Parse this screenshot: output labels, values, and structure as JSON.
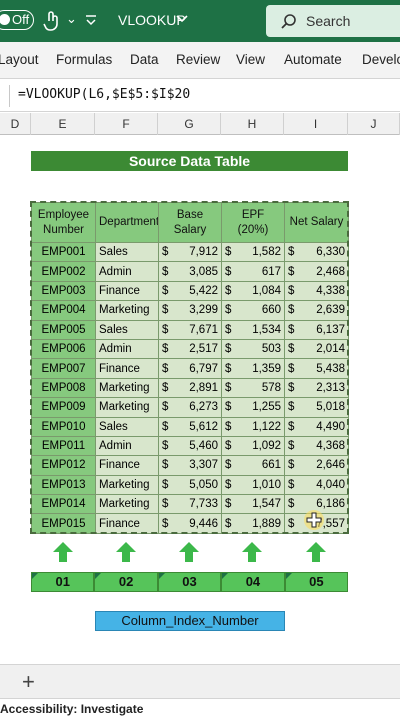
{
  "titlebar": {
    "autosave_label": "Off",
    "doc_title": "VLOOKUP",
    "search_placeholder": "Search"
  },
  "ribbon": {
    "tabs": [
      "Layout",
      "Formulas",
      "Data",
      "Review",
      "View",
      "Automate",
      "Develo"
    ]
  },
  "formula_bar": {
    "formula": "=VLOOKUP(L6,$E$5:$I$20"
  },
  "column_headers": [
    "D",
    "E",
    "F",
    "G",
    "H",
    "I",
    "J"
  ],
  "sheet": {
    "title": "Source Data Table",
    "table": {
      "headers": [
        "Employee Number",
        "Department",
        "Base Salary",
        "EPF (20%)",
        "Net Salary"
      ],
      "currency_symbol": "$",
      "rows": [
        [
          "EMP001",
          "Sales",
          "7,912",
          "1,582",
          "6,330"
        ],
        [
          "EMP002",
          "Admin",
          "3,085",
          "617",
          "2,468"
        ],
        [
          "EMP003",
          "Finance",
          "5,422",
          "1,084",
          "4,338"
        ],
        [
          "EMP004",
          "Marketing",
          "3,299",
          "660",
          "2,639"
        ],
        [
          "EMP005",
          "Sales",
          "7,671",
          "1,534",
          "6,137"
        ],
        [
          "EMP006",
          "Admin",
          "2,517",
          "503",
          "2,014"
        ],
        [
          "EMP007",
          "Finance",
          "6,797",
          "1,359",
          "5,438"
        ],
        [
          "EMP008",
          "Marketing",
          "2,891",
          "578",
          "2,313"
        ],
        [
          "EMP009",
          "Marketing",
          "6,273",
          "1,255",
          "5,018"
        ],
        [
          "EMP010",
          "Sales",
          "5,612",
          "1,122",
          "4,490"
        ],
        [
          "EMP011",
          "Admin",
          "5,460",
          "1,092",
          "4,368"
        ],
        [
          "EMP012",
          "Finance",
          "3,307",
          "661",
          "2,646"
        ],
        [
          "EMP013",
          "Marketing",
          "5,050",
          "1,010",
          "4,040"
        ],
        [
          "EMP014",
          "Marketing",
          "7,733",
          "1,547",
          "6,186"
        ],
        [
          "EMP015",
          "Finance",
          "9,446",
          "1,889",
          "7,557"
        ]
      ]
    },
    "column_indexes": [
      "01",
      "02",
      "03",
      "04",
      "05"
    ],
    "index_label": "Column_Index_Number"
  },
  "status_bar": {
    "accessibility": "Accessibility: Investigate"
  },
  "colors": {
    "excel_green": "#1e7145",
    "title_band": "#3c8a34",
    "header_fill": "#86c97e",
    "cell_fill": "#d8e6cc",
    "index_fill": "#56c45a",
    "label_fill": "#45b3e6",
    "arrow": "#3cb84a"
  },
  "icons": [
    "touch-mode-icon",
    "quick-access-chevron-icon",
    "title-dropdown-icon",
    "search-icon",
    "up-arrow-icon",
    "add-sheet-icon",
    "cursor-plus-icon"
  ]
}
